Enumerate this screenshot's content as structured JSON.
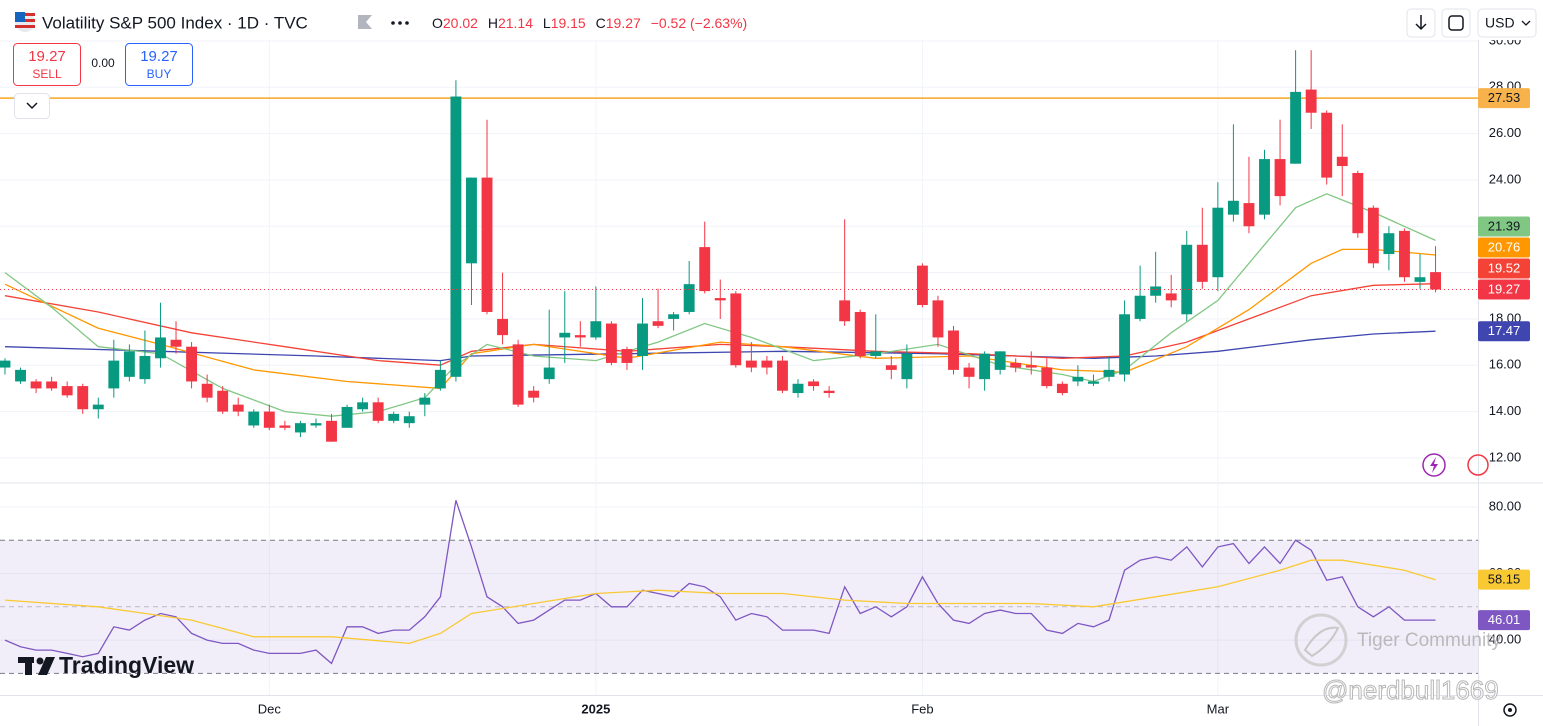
{
  "header": {
    "symbol": "Volatility S&P 500 Index · 1D · TVC",
    "o": "O",
    "h": "H",
    "l": "L",
    "c": "C",
    "change": "−0.52 (−2.63%)",
    "sell": "SELL",
    "buy": "BUY",
    "spread": "0.00",
    "currency": "USD"
  },
  "watermarks": {
    "brand": "TradingView",
    "community": "Tiger Community",
    "handle": "@nerdbull1669"
  },
  "chart_data": [
    {
      "type": "candlestick",
      "up_color": "#089981",
      "down_color": "#f23645",
      "grid": true,
      "xlim": [
        -0.32,
        94.73
      ],
      "ylim": [
        10.96,
        30.04
      ],
      "yticks": [
        {
          "value": 12,
          "label": "12.00"
        },
        {
          "value": 14,
          "label": "14.00"
        },
        {
          "value": 16,
          "label": "16.00"
        },
        {
          "value": 18,
          "label": "18.00"
        },
        {
          "value": 20,
          "label": "20.00"
        },
        {
          "value": 22,
          "label": "22.00"
        },
        {
          "value": 24,
          "label": "24.00"
        },
        {
          "value": 26,
          "label": "26.00"
        },
        {
          "value": 28,
          "label": "28.00"
        },
        {
          "value": 30,
          "label": "30.00"
        }
      ],
      "xticks": [
        {
          "value": 17,
          "label": "Dec"
        },
        {
          "value": 38,
          "label": "2025",
          "bold": true
        },
        {
          "value": 59,
          "label": "Feb"
        },
        {
          "value": 78,
          "label": "Mar"
        }
      ],
      "open": [
        15.9,
        15.3,
        15.3,
        15.3,
        15.1,
        15.1,
        14.1,
        15.0,
        15.5,
        15.4,
        16.3,
        17.1,
        16.8,
        15.2,
        14.9,
        14.3,
        13.4,
        14.0,
        13.4,
        13.1,
        13.4,
        13.6,
        13.3,
        14.1,
        14.4,
        13.6,
        13.5,
        14.3,
        15.0,
        15.5,
        20.4,
        24.1,
        18.0,
        16.9,
        14.9,
        15.4,
        17.2,
        17.3,
        17.2,
        17.8,
        16.7,
        16.4,
        17.9,
        18.0,
        18.3,
        21.1,
        18.9,
        19.1,
        16.2,
        16.2,
        16.2,
        14.8,
        15.3,
        14.9,
        18.8,
        18.3,
        16.4,
        16.0,
        15.4,
        20.3,
        18.8,
        17.5,
        15.9,
        15.4,
        15.8,
        16.1,
        16.0,
        15.9,
        15.2,
        15.3,
        15.2,
        15.5,
        15.6,
        18.0,
        19.0,
        19.1,
        18.2,
        21.2,
        19.8,
        22.5,
        23.0,
        22.5,
        24.9,
        24.7,
        27.9,
        26.9,
        25.0,
        24.3,
        22.8,
        20.8,
        21.8,
        19.6,
        20.02
      ],
      "high": [
        16.3,
        15.9,
        15.4,
        15.5,
        15.3,
        15.2,
        14.6,
        17.1,
        16.9,
        17.5,
        18.7,
        17.9,
        17.0,
        15.6,
        15.1,
        14.6,
        14.1,
        14.3,
        13.6,
        13.6,
        13.7,
        13.9,
        14.3,
        14.6,
        14.6,
        14.0,
        14.0,
        14.8,
        16.2,
        28.3,
        24.1,
        26.6,
        20.0,
        17.1,
        15.1,
        18.4,
        19.2,
        17.9,
        19.4,
        17.9,
        16.8,
        18.9,
        19.3,
        18.3,
        20.5,
        22.2,
        19.7,
        19.2,
        17.0,
        16.4,
        16.4,
        15.4,
        15.4,
        15.1,
        22.3,
        18.4,
        18.2,
        16.4,
        16.9,
        20.4,
        19.0,
        17.7,
        16.1,
        16.6,
        16.6,
        16.3,
        16.6,
        16.3,
        15.3,
        16.0,
        15.6,
        16.4,
        18.8,
        20.3,
        20.9,
        19.9,
        21.8,
        22.8,
        23.9,
        26.4,
        25.0,
        25.3,
        26.6,
        29.6,
        29.6,
        27.0,
        26.4,
        24.4,
        22.9,
        22.0,
        21.9,
        20.8,
        21.14
      ],
      "low": [
        15.6,
        15.2,
        14.8,
        14.9,
        14.6,
        13.9,
        13.7,
        14.6,
        15.3,
        15.2,
        15.9,
        16.5,
        15.0,
        14.4,
        13.9,
        13.8,
        13.3,
        13.2,
        13.2,
        12.9,
        13.3,
        12.7,
        13.3,
        14.0,
        13.5,
        13.5,
        13.3,
        13.8,
        14.9,
        15.3,
        18.6,
        18.2,
        16.9,
        14.2,
        14.4,
        15.2,
        16.1,
        16.8,
        17.1,
        16.0,
        15.8,
        15.8,
        17.6,
        17.5,
        18.2,
        19.1,
        18.0,
        15.9,
        15.7,
        15.6,
        14.8,
        14.6,
        14.9,
        14.6,
        17.7,
        16.3,
        16.3,
        15.4,
        15.0,
        18.5,
        16.8,
        15.6,
        15.0,
        14.9,
        15.6,
        15.7,
        15.6,
        15.0,
        14.7,
        15.1,
        15.1,
        15.3,
        15.3,
        17.9,
        18.7,
        18.5,
        17.9,
        19.3,
        19.2,
        22.2,
        21.7,
        22.3,
        22.9,
        24.7,
        26.2,
        23.8,
        23.3,
        21.5,
        20.2,
        20.1,
        19.6,
        19.3,
        19.15
      ],
      "close": [
        16.2,
        15.8,
        15.0,
        15.0,
        14.7,
        14.1,
        14.3,
        16.2,
        16.6,
        16.4,
        17.2,
        16.8,
        15.3,
        14.6,
        14.0,
        14.0,
        14.0,
        13.3,
        13.3,
        13.5,
        13.5,
        12.7,
        14.2,
        14.4,
        13.6,
        13.9,
        13.8,
        14.6,
        15.8,
        27.6,
        24.1,
        18.3,
        17.3,
        14.3,
        14.6,
        15.9,
        17.4,
        17.2,
        17.9,
        16.1,
        16.1,
        17.8,
        17.7,
        18.2,
        19.5,
        19.2,
        18.8,
        16.0,
        15.9,
        15.9,
        14.9,
        15.2,
        15.1,
        14.8,
        17.9,
        16.4,
        16.6,
        15.8,
        16.5,
        18.6,
        17.2,
        15.8,
        15.5,
        16.5,
        16.6,
        15.9,
        15.9,
        15.1,
        14.8,
        15.5,
        15.3,
        15.8,
        18.2,
        19.0,
        19.4,
        18.8,
        21.2,
        19.6,
        22.8,
        23.1,
        22.0,
        24.9,
        23.3,
        27.8,
        26.9,
        24.1,
        24.6,
        21.7,
        20.4,
        21.7,
        19.8,
        19.8,
        19.27
      ],
      "levels": [
        {
          "value": 27.53,
          "color": "#f5a623",
          "label_color": "#f7b24b",
          "label_text": "#131722"
        }
      ],
      "series": [
        {
          "color": "#3f46b0",
          "label_text": "#ffffff",
          "x": [
            0,
            10,
            20,
            28,
            30,
            40,
            50,
            60,
            70,
            74,
            78,
            84,
            88,
            92
          ],
          "values": [
            16.8,
            16.6,
            16.4,
            16.2,
            16.4,
            16.5,
            16.6,
            16.5,
            16.3,
            16.4,
            16.6,
            17.1,
            17.35,
            17.47
          ]
        },
        {
          "color": "#f44336",
          "label_text": "#ffffff",
          "x": [
            0,
            6,
            12,
            18,
            24,
            28,
            30,
            34,
            40,
            46,
            50,
            56,
            62,
            68,
            72,
            76,
            80,
            84,
            88,
            92
          ],
          "values": [
            19.0,
            18.3,
            17.4,
            16.8,
            16.2,
            16.0,
            16.6,
            16.9,
            16.6,
            16.9,
            16.8,
            16.6,
            16.5,
            16.3,
            16.4,
            17.0,
            18.0,
            19.0,
            19.45,
            19.52
          ]
        },
        {
          "color": "#ff9800",
          "label_text": "#ffffff",
          "x": [
            0,
            6,
            10,
            16,
            22,
            28,
            30,
            34,
            40,
            46,
            50,
            56,
            62,
            68,
            72,
            76,
            80,
            84,
            86,
            88,
            92
          ],
          "values": [
            19.5,
            17.6,
            16.9,
            15.8,
            15.3,
            15.0,
            16.5,
            16.9,
            16.3,
            17.0,
            16.8,
            16.3,
            16.4,
            15.8,
            15.7,
            16.8,
            18.4,
            20.4,
            21.0,
            21.0,
            20.76
          ]
        },
        {
          "color": "#81c784",
          "label_text": "#131722",
          "x": [
            0,
            3,
            6,
            10,
            14,
            18,
            21,
            24,
            27,
            29,
            31,
            34,
            38,
            42,
            45,
            48,
            52,
            56,
            60,
            64,
            68,
            70,
            72,
            75,
            78,
            81,
            83,
            85,
            88,
            92
          ],
          "values": [
            20.0,
            18.5,
            16.8,
            16.5,
            15.0,
            14.0,
            13.8,
            14.0,
            14.6,
            16.0,
            16.9,
            16.4,
            16.2,
            17.0,
            17.8,
            17.2,
            16.2,
            16.5,
            16.9,
            16.0,
            15.6,
            15.3,
            15.8,
            17.4,
            18.8,
            21.2,
            22.8,
            23.4,
            22.6,
            21.39
          ]
        }
      ]
    },
    {
      "type": "line",
      "grid": true,
      "xlim": [
        -0.32,
        94.73
      ],
      "ylim": [
        23.5,
        86.9
      ],
      "yticks": [
        {
          "value": 40,
          "label": "40.00"
        },
        {
          "value": 60,
          "label": "60.00"
        },
        {
          "value": 80,
          "label": "80.00"
        }
      ],
      "band": [
        30,
        70
      ],
      "band_color": "#7e57c2",
      "midline": 50,
      "series": [
        {
          "color": "#7e57c2",
          "label_text": "#ffffff",
          "values": [
            40,
            38,
            37,
            37,
            36,
            35,
            36,
            44,
            43,
            46,
            48,
            47,
            42,
            40,
            39,
            39,
            37,
            36,
            36,
            36,
            37,
            33,
            44,
            44,
            42,
            43,
            43,
            47,
            53,
            82,
            68,
            53,
            50,
            45,
            46,
            49,
            52,
            52,
            54,
            50,
            50,
            55,
            54,
            53,
            57,
            56,
            53,
            46,
            48,
            47,
            43,
            43,
            43,
            42,
            56,
            48,
            50,
            47,
            50,
            59,
            51,
            46,
            45,
            48,
            49,
            48,
            48,
            43,
            42,
            45,
            44,
            46,
            61,
            64,
            65,
            64,
            68,
            62,
            68,
            69,
            63,
            68,
            63,
            70,
            67,
            58,
            59,
            50,
            47,
            50,
            46,
            46,
            46.01
          ]
        },
        {
          "color": "#f9c934",
          "label_text": "#131722",
          "x": [
            0,
            6,
            12,
            16,
            21,
            26,
            28,
            30,
            34,
            38,
            42,
            46,
            50,
            54,
            58,
            62,
            66,
            70,
            74,
            78,
            82,
            84,
            86,
            90,
            92
          ],
          "values": [
            52,
            50,
            46,
            41,
            41,
            39,
            42,
            48,
            51,
            54,
            55,
            54,
            54,
            52,
            51,
            51,
            51,
            50,
            53,
            56,
            61,
            64,
            64,
            61,
            58.15
          ]
        }
      ]
    }
  ]
}
